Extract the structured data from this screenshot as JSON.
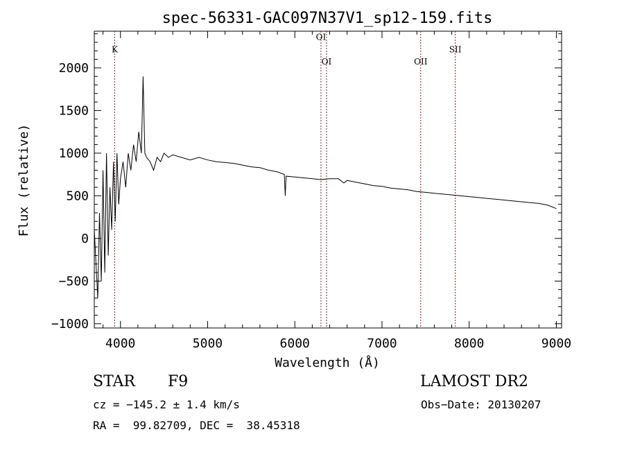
{
  "chart_data": {
    "type": "line",
    "title": "spec-56331-GAC097N37V1_sp12-159.fits",
    "xlabel": "Wavelength (Å)",
    "ylabel": "Flux (relative)",
    "xlim": [
      3700,
      9060
    ],
    "ylim": [
      -1050,
      2430
    ],
    "xticks": [
      4000,
      5000,
      6000,
      7000,
      8000,
      9000
    ],
    "yticks": [
      -1000,
      -500,
      0,
      500,
      1000,
      1500,
      2000
    ],
    "grid": false,
    "line_color": "#000000",
    "marker_color": "#8b1a1a",
    "series": [
      {
        "values_x": [
          3700,
          3720,
          3740,
          3760,
          3780,
          3800,
          3820,
          3840,
          3860,
          3880,
          3900,
          3920,
          3940,
          3960,
          3980,
          4000,
          4030,
          4060,
          4090,
          4120,
          4150,
          4180,
          4210,
          4240,
          4260,
          4280,
          4300,
          4340,
          4380,
          4420,
          4460,
          4500,
          4550,
          4600,
          4700,
          4800,
          4900,
          5000,
          5100,
          5200,
          5300,
          5400,
          5500,
          5600,
          5700,
          5800,
          5880,
          5890,
          5900,
          6000,
          6100,
          6200,
          6300,
          6400,
          6500,
          6563,
          6600,
          6700,
          6800,
          6900,
          7000,
          7100,
          7200,
          7300,
          7400,
          7500,
          7600,
          7700,
          7800,
          7900,
          8000,
          8100,
          8200,
          8300,
          8400,
          8500,
          8600,
          8700,
          8800,
          8900,
          9000
        ],
        "values_y": [
          100,
          -300,
          -700,
          300,
          -500,
          800,
          -400,
          1000,
          -200,
          600,
          100,
          900,
          200,
          1000,
          400,
          700,
          900,
          600,
          1000,
          800,
          1100,
          900,
          1250,
          1000,
          1900,
          1000,
          950,
          900,
          800,
          950,
          900,
          1000,
          950,
          980,
          950,
          920,
          950,
          920,
          900,
          890,
          880,
          860,
          840,
          830,
          800,
          780,
          750,
          500,
          730,
          720,
          710,
          700,
          690,
          700,
          700,
          650,
          680,
          660,
          640,
          620,
          610,
          590,
          580,
          570,
          550,
          540,
          530,
          520,
          510,
          500,
          490,
          480,
          470,
          460,
          450,
          440,
          430,
          420,
          410,
          390,
          350
        ]
      }
    ],
    "lines": [
      {
        "label": "K",
        "x": 3934,
        "label_y": 2180
      },
      {
        "label": "OI",
        "x": 6300,
        "label_y": 2330
      },
      {
        "label": "OI",
        "x": 6364,
        "label_y": 2040
      },
      {
        "label": "OII",
        "x": 7444,
        "label_y": 2040
      },
      {
        "label": "SII",
        "x": 7840,
        "label_y": 2180
      }
    ]
  },
  "info": {
    "object_class": "STAR",
    "subclass": "F9",
    "survey": "LAMOST DR2",
    "redshift": "cz = −145.2 ± 1.4 km/s",
    "obs_date": "Obs−Date: 20130207",
    "coords": "RA =  99.82709, DEC =  38.45318"
  }
}
